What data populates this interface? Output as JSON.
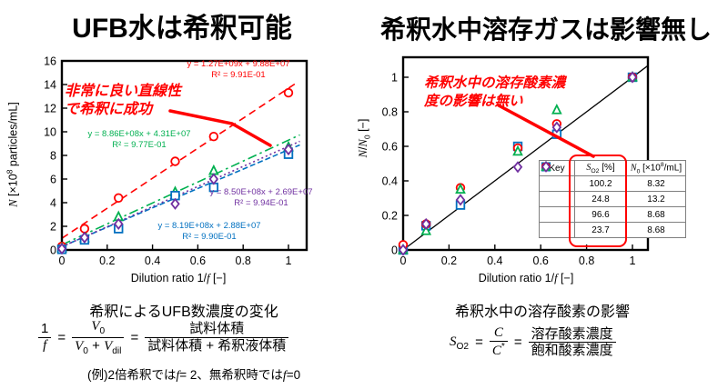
{
  "slide": {
    "left_title": "UFB水は希釈可能",
    "right_title": "希釈水中溶存ガスは影響無し",
    "accent_red": "#FF0000"
  },
  "left": {
    "annotation_line1": "非常に良い直線性",
    "annotation_line2": "で希釈に成功",
    "ylabel": {
      "n": "N",
      "pre": " [×10",
      "sup": "8",
      "post": " particles/mL]"
    },
    "xlabel": {
      "pre": "Dilution ratio 1/",
      "f": "f",
      "post": " [−]"
    },
    "caption": "希釈によるUFB数濃度の変化",
    "formula": {
      "num1": "1",
      "den1": "f",
      "eq1": "=",
      "v": "V",
      "sub0": "0",
      "plus": "+",
      "subdil": "dil",
      "eq2": "=",
      "num3": "試料体積",
      "den3": "試料体積 + 希釈液体積"
    },
    "example": {
      "p1": "(例)2倍希釈では",
      "f1": "f",
      "p2": "= 2、無希釈時では",
      "f2": "f",
      "p3": "=0"
    }
  },
  "right": {
    "annotation_line1": "希釈水中の溶存酸素濃",
    "annotation_line2": "度の影響は無い",
    "ylabel": {
      "n1": "N",
      "slash": "/",
      "n2": "N",
      "sub": "0",
      "post": " [−]"
    },
    "xlabel": {
      "pre": "Dilution ratio 1/",
      "f": "f",
      "post": " [−]"
    },
    "caption": "希釈水中の溶存酸素の影響",
    "formula": {
      "s": "S",
      "ssub": "O2",
      "eq1": "=",
      "c": "C",
      "cden": "C",
      "cstar": "*",
      "eq2": "=",
      "num": "溶存酸素濃度",
      "den": "飽和酸素濃度"
    },
    "legend": {
      "header": {
        "key": "Key",
        "s": "S",
        "ssub": "O2",
        "sunit": " [%]",
        "n": "N",
        "nsub": "0",
        "npre": " [×10",
        "nsup": "8",
        "npost": "/mL]"
      },
      "rows": [
        {
          "marker": "square",
          "color": "#0070C0",
          "so2": "100.2",
          "n0": "8.32"
        },
        {
          "marker": "circle",
          "color": "#FF0000",
          "so2": "24.8",
          "n0": "13.2"
        },
        {
          "marker": "triangle",
          "color": "#00B050",
          "so2": "96.6",
          "n0": "8.68"
        },
        {
          "marker": "diamond",
          "color": "#7030A0",
          "so2": "23.7",
          "n0": "8.68"
        }
      ]
    }
  },
  "chart_data": [
    {
      "type": "scatter",
      "title": "UFB水は希釈可能",
      "xlabel": "Dilution ratio 1/f [−]",
      "ylabel": "N [×10^8 particles/mL]",
      "xlim": [
        0,
        1.08
      ],
      "ylim": [
        0,
        16
      ],
      "grid": false,
      "legend_position": "none",
      "xticks": [
        0,
        0.2,
        0.4,
        0.6,
        0.8,
        1
      ],
      "xtick_labels": [
        "0",
        "0.2",
        "0.4",
        "0.6",
        "0.8",
        "1"
      ],
      "yticks": [
        0,
        2,
        4,
        6,
        8,
        10,
        12,
        14,
        16
      ],
      "ytick_labels": [
        "0",
        "2",
        "4",
        "6",
        "8",
        "10",
        "12",
        "14",
        "16"
      ],
      "x": [
        0,
        0.1,
        0.25,
        0.5,
        0.67,
        1
      ],
      "series": [
        {
          "name": "red-circles",
          "marker": "circle",
          "color": "#FF0000",
          "values": [
            0.3,
            1.8,
            4.4,
            7.5,
            9.6,
            13.3
          ],
          "fit": {
            "slope": 12.7,
            "intercept": 0.988,
            "xmax": 1.03,
            "dash": "8 5",
            "label": "y = 1.27E+09x + 9.88E+07",
            "r2": "R² = 9.91E-01"
          }
        },
        {
          "name": "green-triangles",
          "marker": "triangle",
          "color": "#00B050",
          "values": [
            0.15,
            1.0,
            2.8,
            4.9,
            6.7,
            8.7
          ],
          "fit": {
            "slope": 8.86,
            "intercept": 0.431,
            "xmax": 1.05,
            "dash": "10 4 2.5 4",
            "label": "y = 8.86E+08x + 4.31E+07",
            "r2": "R² = 9.77E-01"
          }
        },
        {
          "name": "blue-squares",
          "marker": "square",
          "color": "#0070C0",
          "values": [
            0.05,
            0.85,
            1.8,
            4.6,
            5.3,
            8.1
          ],
          "fit": {
            "slope": 8.19,
            "intercept": 0.288,
            "xmax": 1.05,
            "dash": "6 3",
            "label": "y = 8.19E+08x + 2.88E+07",
            "r2": "R² = 9.90E-01"
          }
        },
        {
          "name": "purple-diamonds",
          "marker": "diamond",
          "color": "#7030A0",
          "values": [
            0.1,
            1.05,
            2.2,
            3.9,
            6.0,
            8.5
          ],
          "fit": {
            "slope": 8.5,
            "intercept": 0.269,
            "xmax": 1.05,
            "dash": "2 3",
            "label": "y = 8.50E+08x + 2.69E+07",
            "r2": "R² = 9.94E-01"
          }
        }
      ]
    },
    {
      "type": "scatter",
      "title": "希釈水中溶存ガスは影響無し",
      "xlabel": "Dilution ratio 1/f [−]",
      "ylabel": "N/N0 [−]",
      "xlim": [
        0,
        1.07
      ],
      "ylim": [
        0,
        1.11
      ],
      "grid": false,
      "legend_position": "inside lower-right",
      "diagonal": true,
      "xticks": [
        0,
        0.2,
        0.4,
        0.6,
        0.8,
        1
      ],
      "xtick_labels": [
        "0",
        "0.2",
        "0.4",
        "0.6",
        "0.8",
        "1"
      ],
      "yticks": [
        0,
        0.2,
        0.4,
        0.6,
        0.8,
        1
      ],
      "ytick_labels": [
        "0",
        "0.2",
        "0.4",
        "0.6",
        "0.8",
        "1"
      ],
      "x": [
        0,
        0.1,
        0.25,
        0.5,
        0.67,
        1
      ],
      "series": [
        {
          "name": "SO2-100.2",
          "marker": "square",
          "color": "#0070C0",
          "so2_percent": 100.2,
          "n0_x1e8_per_mL": 8.32,
          "values": [
            0,
            0.14,
            0.26,
            0.6,
            0.67,
            1.0
          ]
        },
        {
          "name": "SO2-24.8",
          "marker": "circle",
          "color": "#FF0000",
          "so2_percent": 24.8,
          "n0_x1e8_per_mL": 13.2,
          "values": [
            0.03,
            0.15,
            0.36,
            0.59,
            0.73,
            1.0
          ]
        },
        {
          "name": "SO2-96.6",
          "marker": "triangle",
          "color": "#00B050",
          "so2_percent": 96.6,
          "n0_x1e8_per_mL": 8.68,
          "values": [
            0,
            0.11,
            0.35,
            0.57,
            0.81,
            1.0
          ]
        },
        {
          "name": "SO2-23.7",
          "marker": "diamond",
          "color": "#7030A0",
          "so2_percent": 23.7,
          "n0_x1e8_per_mL": 8.68,
          "values": [
            0,
            0.15,
            0.29,
            0.48,
            0.71,
            1.0
          ]
        }
      ]
    }
  ]
}
